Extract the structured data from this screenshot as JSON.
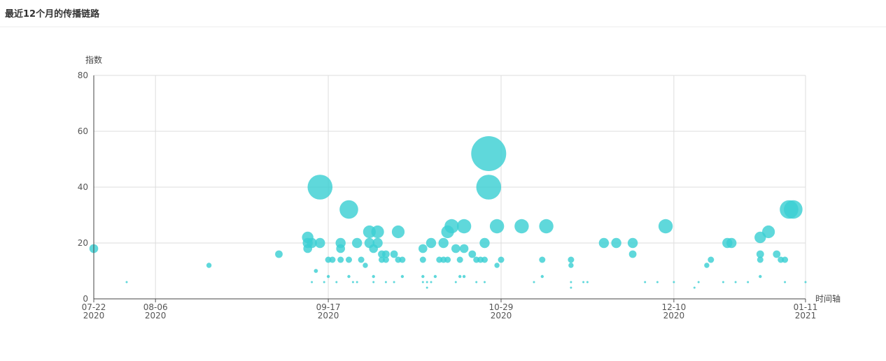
{
  "page": {
    "title": "最近12个月的传播链路"
  },
  "chart_data": {
    "type": "scatter",
    "title": "",
    "xlabel": "时间轴",
    "ylabel": "指数",
    "xlim": [
      "2020-07-22",
      "2021-01-11"
    ],
    "ylim": [
      0,
      80
    ],
    "y_ticks": [
      0,
      20,
      40,
      60,
      80
    ],
    "x_ticks": [
      {
        "date": "2020-07-22",
        "label1": "07-22",
        "label2": "2020"
      },
      {
        "date": "2020-08-06",
        "label1": "08-06",
        "label2": "2020"
      },
      {
        "date": "2020-09-17",
        "label1": "09-17",
        "label2": "2020"
      },
      {
        "date": "2020-10-29",
        "label1": "10-29",
        "label2": "2020"
      },
      {
        "date": "2020-12-10",
        "label1": "12-10",
        "label2": "2020"
      },
      {
        "date": "2021-01-11",
        "label1": "01-11",
        "label2": "2021"
      }
    ],
    "grid": true,
    "color": "#3ccfd3",
    "points": [
      [
        "2020-07-22",
        18
      ],
      [
        "2020-07-30",
        6
      ],
      [
        "2020-08-19",
        12
      ],
      [
        "2020-09-05",
        16
      ],
      [
        "2020-09-12",
        22
      ],
      [
        "2020-09-12",
        20
      ],
      [
        "2020-09-12",
        18
      ],
      [
        "2020-09-13",
        20
      ],
      [
        "2020-09-13",
        6
      ],
      [
        "2020-09-14",
        10
      ],
      [
        "2020-09-15",
        40
      ],
      [
        "2020-09-15",
        20
      ],
      [
        "2020-09-16",
        6
      ],
      [
        "2020-09-17",
        14
      ],
      [
        "2020-09-17",
        8
      ],
      [
        "2020-09-18",
        14
      ],
      [
        "2020-09-19",
        6
      ],
      [
        "2020-09-20",
        20
      ],
      [
        "2020-09-20",
        18
      ],
      [
        "2020-09-20",
        14
      ],
      [
        "2020-09-22",
        32
      ],
      [
        "2020-09-22",
        14
      ],
      [
        "2020-09-22",
        8
      ],
      [
        "2020-09-23",
        6
      ],
      [
        "2020-09-24",
        20
      ],
      [
        "2020-09-24",
        6
      ],
      [
        "2020-09-25",
        14
      ],
      [
        "2020-09-26",
        12
      ],
      [
        "2020-09-27",
        24
      ],
      [
        "2020-09-27",
        20
      ],
      [
        "2020-09-28",
        18
      ],
      [
        "2020-09-28",
        8
      ],
      [
        "2020-09-28",
        6
      ],
      [
        "2020-09-29",
        24
      ],
      [
        "2020-09-29",
        20
      ],
      [
        "2020-09-30",
        16
      ],
      [
        "2020-09-30",
        14
      ],
      [
        "2020-10-01",
        16
      ],
      [
        "2020-10-01",
        14
      ],
      [
        "2020-10-01",
        6
      ],
      [
        "2020-10-03",
        16
      ],
      [
        "2020-10-03",
        6
      ],
      [
        "2020-10-04",
        24
      ],
      [
        "2020-10-04",
        14
      ],
      [
        "2020-10-05",
        14
      ],
      [
        "2020-10-05",
        8
      ],
      [
        "2020-10-10",
        18
      ],
      [
        "2020-10-10",
        14
      ],
      [
        "2020-10-10",
        8
      ],
      [
        "2020-10-10",
        6
      ],
      [
        "2020-10-11",
        6
      ],
      [
        "2020-10-11",
        4
      ],
      [
        "2020-10-12",
        20
      ],
      [
        "2020-10-12",
        6
      ],
      [
        "2020-10-13",
        8
      ],
      [
        "2020-10-14",
        14
      ],
      [
        "2020-10-15",
        20
      ],
      [
        "2020-10-15",
        14
      ],
      [
        "2020-10-16",
        24
      ],
      [
        "2020-10-16",
        14
      ],
      [
        "2020-10-17",
        26
      ],
      [
        "2020-10-18",
        18
      ],
      [
        "2020-10-18",
        6
      ],
      [
        "2020-10-19",
        14
      ],
      [
        "2020-10-19",
        8
      ],
      [
        "2020-10-20",
        26
      ],
      [
        "2020-10-20",
        18
      ],
      [
        "2020-10-20",
        8
      ],
      [
        "2020-10-22",
        16
      ],
      [
        "2020-10-23",
        14
      ],
      [
        "2020-10-23",
        6
      ],
      [
        "2020-10-24",
        14
      ],
      [
        "2020-10-25",
        20
      ],
      [
        "2020-10-25",
        14
      ],
      [
        "2020-10-25",
        6
      ],
      [
        "2020-10-26",
        52
      ],
      [
        "2020-10-26",
        40
      ],
      [
        "2020-10-28",
        26
      ],
      [
        "2020-10-28",
        12
      ],
      [
        "2020-10-29",
        14
      ],
      [
        "2020-11-03",
        26
      ],
      [
        "2020-11-06",
        6
      ],
      [
        "2020-11-08",
        14
      ],
      [
        "2020-11-08",
        8
      ],
      [
        "2020-11-09",
        26
      ],
      [
        "2020-11-15",
        14
      ],
      [
        "2020-11-15",
        12
      ],
      [
        "2020-11-15",
        6
      ],
      [
        "2020-11-15",
        4
      ],
      [
        "2020-11-18",
        6
      ],
      [
        "2020-11-19",
        6
      ],
      [
        "2020-11-23",
        20
      ],
      [
        "2020-11-26",
        20
      ],
      [
        "2020-11-30",
        20
      ],
      [
        "2020-11-30",
        16
      ],
      [
        "2020-12-03",
        6
      ],
      [
        "2020-12-06",
        6
      ],
      [
        "2020-12-08",
        26
      ],
      [
        "2020-12-10",
        6
      ],
      [
        "2020-12-15",
        4
      ],
      [
        "2020-12-16",
        6
      ],
      [
        "2020-12-18",
        12
      ],
      [
        "2020-12-19",
        14
      ],
      [
        "2020-12-22",
        6
      ],
      [
        "2020-12-23",
        20
      ],
      [
        "2020-12-24",
        20
      ],
      [
        "2020-12-25",
        6
      ],
      [
        "2020-12-28",
        6
      ],
      [
        "2020-12-31",
        22
      ],
      [
        "2020-12-31",
        16
      ],
      [
        "2020-12-31",
        14
      ],
      [
        "2020-12-31",
        8
      ],
      [
        "2021-01-02",
        24
      ],
      [
        "2021-01-04",
        16
      ],
      [
        "2021-01-05",
        14
      ],
      [
        "2021-01-06",
        14
      ],
      [
        "2021-01-06",
        6
      ],
      [
        "2021-01-07",
        32
      ],
      [
        "2021-01-08",
        32
      ],
      [
        "2021-01-11",
        6
      ]
    ]
  }
}
